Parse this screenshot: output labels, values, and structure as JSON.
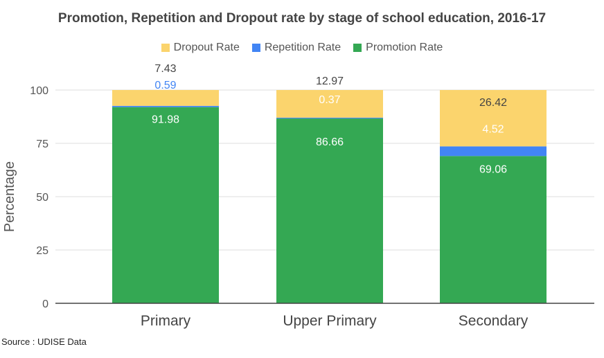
{
  "chart_data": {
    "type": "bar",
    "stacked": true,
    "title": "Promotion, Repetition and Dropout rate by stage of school education, 2016-17",
    "ylabel": "Percentage",
    "ylim": [
      0,
      100
    ],
    "yticks": [
      0,
      25,
      50,
      75,
      100
    ],
    "grid": true,
    "legend_position": "top",
    "categories": [
      "Primary",
      "Upper Primary",
      "Secondary"
    ],
    "series": [
      {
        "name": "Promotion Rate",
        "values": [
          91.98,
          86.66,
          69.06
        ],
        "value_labels": [
          "91.98",
          "86.66",
          "69.06"
        ],
        "color": "#34a853"
      },
      {
        "name": "Repetition Rate",
        "values": [
          0.59,
          0.37,
          4.52
        ],
        "value_labels": [
          "0.59",
          "0.37",
          "4.52"
        ],
        "color": "#4285f4"
      },
      {
        "name": "Dropout Rate",
        "values": [
          7.43,
          12.97,
          26.42
        ],
        "value_labels": [
          "7.43",
          "12.97",
          "26.42"
        ],
        "color": "#fbd46d"
      }
    ],
    "legend_order": [
      "Dropout Rate",
      "Repetition Rate",
      "Promotion Rate"
    ],
    "source": "Source : UDISE Data"
  }
}
